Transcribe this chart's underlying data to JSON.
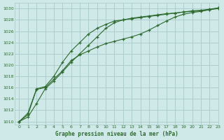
{
  "title": "Graphe pression niveau de la mer (hPa)",
  "bg_color": "#cfe8e8",
  "grid_color": "#a8c8c8",
  "line_color": "#2d6a2d",
  "xlim": [
    -0.5,
    23
  ],
  "ylim": [
    1009.5,
    1031
  ],
  "xticks": [
    0,
    1,
    2,
    3,
    4,
    5,
    6,
    7,
    8,
    9,
    10,
    11,
    12,
    13,
    14,
    15,
    16,
    17,
    18,
    19,
    20,
    21,
    22,
    23
  ],
  "yticks": [
    1010,
    1012,
    1014,
    1016,
    1018,
    1020,
    1022,
    1024,
    1026,
    1028,
    1030
  ],
  "series": [
    [
      1010.0,
      1011.2,
      1015.7,
      1016.0,
      1017.5,
      1019.0,
      1020.8,
      1021.8,
      1022.5,
      1023.2,
      1023.8,
      1024.2,
      1024.6,
      1025.0,
      1025.5,
      1026.2,
      1027.0,
      1027.8,
      1028.5,
      1029.0,
      1029.3,
      1029.5,
      1029.8,
      1030.1
    ],
    [
      1010.0,
      1010.8,
      1013.2,
      1015.8,
      1017.2,
      1018.8,
      1020.5,
      1022.0,
      1023.5,
      1025.0,
      1026.5,
      1027.5,
      1028.0,
      1028.3,
      1028.5,
      1028.7,
      1028.9,
      1029.1,
      1029.2,
      1029.4,
      1029.5,
      1029.6,
      1029.8,
      1030.0
    ],
    [
      1010.0,
      1011.5,
      1015.8,
      1016.2,
      1018.0,
      1020.5,
      1022.5,
      1024.0,
      1025.5,
      1026.5,
      1027.2,
      1027.8,
      1028.0,
      1028.2,
      1028.4,
      1028.6,
      1028.8,
      1029.0,
      1029.2,
      1029.4,
      1029.6,
      1029.7,
      1029.9,
      1030.1
    ]
  ]
}
